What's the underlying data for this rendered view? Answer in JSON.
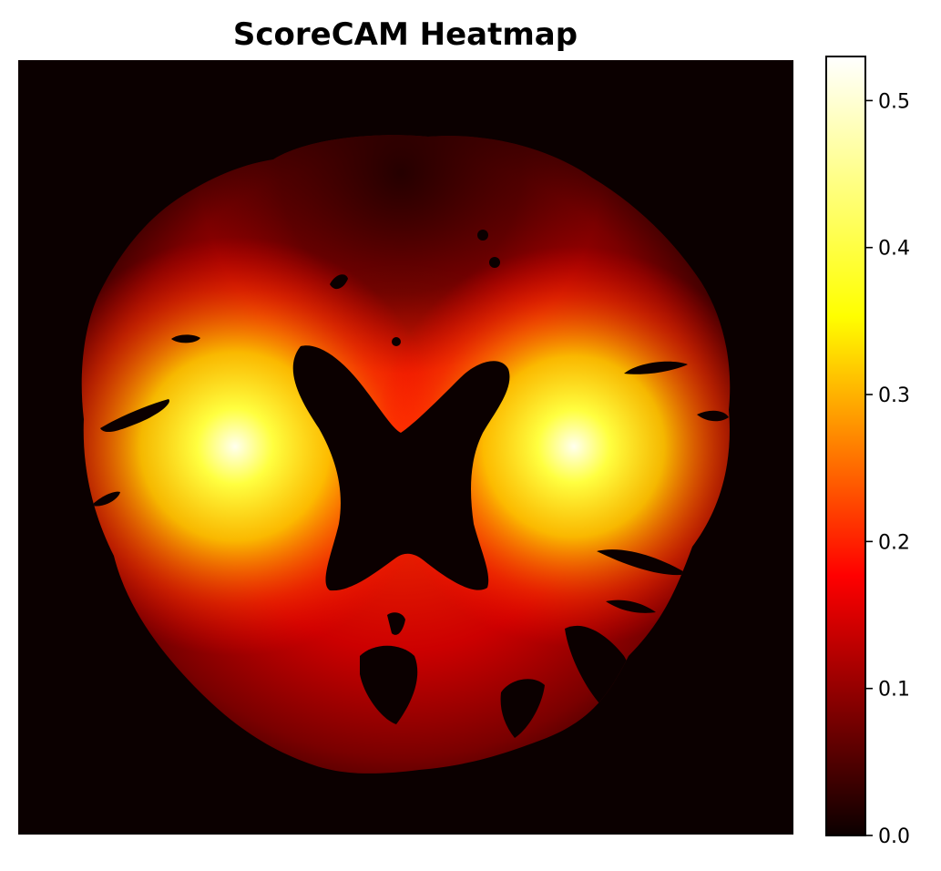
{
  "chart_data": {
    "type": "heatmap",
    "title": "ScoreCAM Heatmap",
    "colormap": "hot",
    "colormap_stops": [
      "#0b0000",
      "#ff0000",
      "#ffff00",
      "#ffffff"
    ],
    "value_range": [
      0.0,
      0.53
    ],
    "axes_visible": false,
    "colorbar": {
      "placement": "right",
      "ticks": [
        0.0,
        0.1,
        0.2,
        0.3,
        0.4,
        0.5
      ],
      "tick_labels": [
        "0.0",
        "0.1",
        "0.2",
        "0.3",
        "0.4",
        "0.5"
      ]
    },
    "hotspots": [
      {
        "name": "left-hemisphere-peak",
        "value": 0.53
      },
      {
        "name": "right-hemisphere-peak",
        "value": 0.53
      }
    ],
    "background_value": 0.0,
    "brain_region_min_value": 0.04
  }
}
